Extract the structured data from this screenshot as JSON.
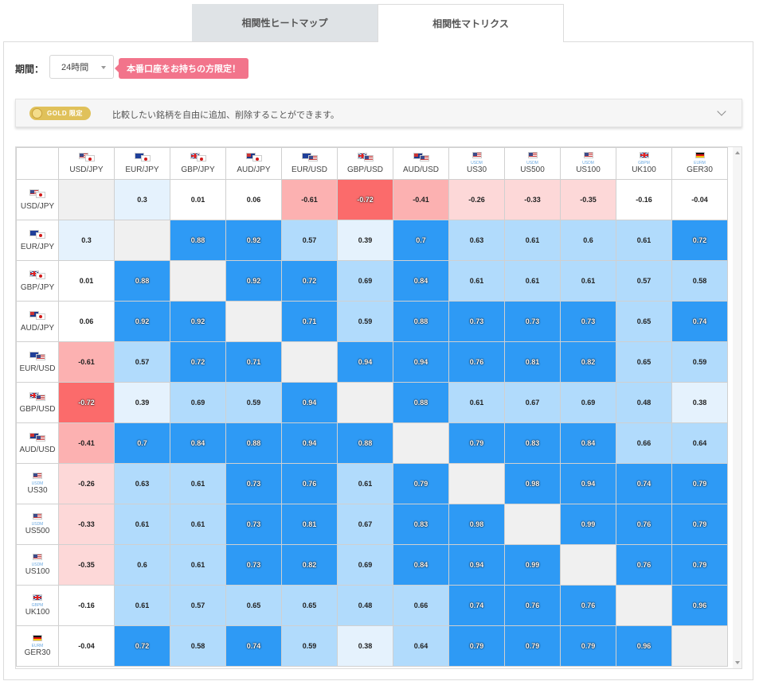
{
  "tabs": [
    {
      "label": "相関性ヒートマップ",
      "active": false
    },
    {
      "label": "相関性マトリクス",
      "active": true
    }
  ],
  "filter": {
    "period_label": "期間：",
    "period_value": "24時間",
    "badge_text": "本番口座をお持ちの方限定！"
  },
  "gold_bar": {
    "pill_text": "GOLD 限定",
    "description": "比較したい銘柄を自由に追加、削除することができます。"
  },
  "colors": {
    "strong_pos": "#2e9af5",
    "mid_pos": "#b1dbfc",
    "weak_pos": "#e5f2fd",
    "neutral": "#ffffff",
    "weak_neg": "#fdd8d8",
    "mid_neg": "#fcb1b1",
    "strong_neg": "#fb6b6b",
    "diagonal": "#f0f0f0"
  },
  "matrix": {
    "instruments": [
      {
        "label": "USD/JPY",
        "flags": [
          "us",
          "jp"
        ],
        "sub": ""
      },
      {
        "label": "EUR/JPY",
        "flags": [
          "eu",
          "jp"
        ],
        "sub": ""
      },
      {
        "label": "GBP/JPY",
        "flags": [
          "gb",
          "jp"
        ],
        "sub": ""
      },
      {
        "label": "AUD/JPY",
        "flags": [
          "au",
          "jp"
        ],
        "sub": ""
      },
      {
        "label": "EUR/USD",
        "flags": [
          "eu",
          "us"
        ],
        "sub": ""
      },
      {
        "label": "GBP/USD",
        "flags": [
          "gb",
          "us"
        ],
        "sub": ""
      },
      {
        "label": "AUD/USD",
        "flags": [
          "au",
          "us"
        ],
        "sub": ""
      },
      {
        "label": "US30",
        "flags": [
          "us"
        ],
        "sub": "USDM"
      },
      {
        "label": "US500",
        "flags": [
          "us"
        ],
        "sub": "USDM"
      },
      {
        "label": "US100",
        "flags": [
          "us"
        ],
        "sub": "USDM"
      },
      {
        "label": "UK100",
        "flags": [
          "gb"
        ],
        "sub": "GBPM"
      },
      {
        "label": "GER30",
        "flags": [
          "de"
        ],
        "sub": "EURM"
      }
    ],
    "values": [
      [
        null,
        0.3,
        0.01,
        0.06,
        -0.61,
        -0.72,
        -0.41,
        -0.26,
        -0.33,
        -0.35,
        -0.16,
        -0.04
      ],
      [
        0.3,
        null,
        0.88,
        0.92,
        0.57,
        0.39,
        0.7,
        0.63,
        0.61,
        0.6,
        0.61,
        0.72
      ],
      [
        0.01,
        0.88,
        null,
        0.92,
        0.72,
        0.69,
        0.84,
        0.61,
        0.61,
        0.61,
        0.57,
        0.58
      ],
      [
        0.06,
        0.92,
        0.92,
        null,
        0.71,
        0.59,
        0.88,
        0.73,
        0.73,
        0.73,
        0.65,
        0.74
      ],
      [
        -0.61,
        0.57,
        0.72,
        0.71,
        null,
        0.94,
        0.94,
        0.76,
        0.81,
        0.82,
        0.65,
        0.59
      ],
      [
        -0.72,
        0.39,
        0.69,
        0.59,
        0.94,
        null,
        0.88,
        0.61,
        0.67,
        0.69,
        0.48,
        0.38
      ],
      [
        -0.41,
        0.7,
        0.84,
        0.88,
        0.94,
        0.88,
        null,
        0.79,
        0.83,
        0.84,
        0.66,
        0.64
      ],
      [
        -0.26,
        0.63,
        0.61,
        0.73,
        0.76,
        0.61,
        0.79,
        null,
        0.98,
        0.94,
        0.74,
        0.79
      ],
      [
        -0.33,
        0.61,
        0.61,
        0.73,
        0.81,
        0.67,
        0.83,
        0.98,
        null,
        0.99,
        0.76,
        0.79
      ],
      [
        -0.35,
        0.6,
        0.61,
        0.73,
        0.82,
        0.69,
        0.84,
        0.94,
        0.99,
        null,
        0.76,
        0.79
      ],
      [
        -0.16,
        0.61,
        0.57,
        0.65,
        0.65,
        0.48,
        0.66,
        0.74,
        0.76,
        0.76,
        null,
        0.96
      ],
      [
        -0.04,
        0.72,
        0.58,
        0.74,
        0.59,
        0.38,
        0.64,
        0.79,
        0.79,
        0.79,
        0.96,
        null
      ]
    ]
  }
}
